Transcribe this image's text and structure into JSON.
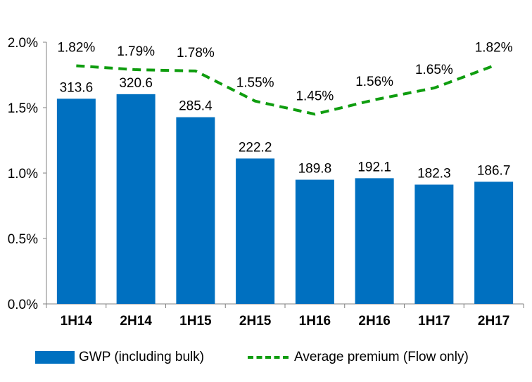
{
  "chart_data": {
    "type": "bar",
    "categories": [
      "1H14",
      "2H14",
      "1H15",
      "2H15",
      "1H16",
      "2H16",
      "1H17",
      "2H17"
    ],
    "series": [
      {
        "name": "GWP (including bulk)",
        "type": "bar",
        "values": [
          313.6,
          320.6,
          285.4,
          222.2,
          189.8,
          192.1,
          182.3,
          186.7
        ],
        "labels": [
          "313.6",
          "320.6",
          "285.4",
          "222.2",
          "189.8",
          "192.1",
          "182.3",
          "186.7"
        ],
        "color": "#0070C0"
      },
      {
        "name": "Average premium (Flow only)",
        "type": "line",
        "style": "dashed",
        "values": [
          1.82,
          1.79,
          1.78,
          1.55,
          1.45,
          1.56,
          1.65,
          1.82
        ],
        "labels": [
          "1.82%",
          "1.79%",
          "1.78%",
          "1.55%",
          "1.45%",
          "1.56%",
          "1.65%",
          "1.82%"
        ],
        "color": "#0F9D0F"
      }
    ],
    "y_axis": {
      "range": [
        0,
        2.0
      ],
      "ticks": [
        0,
        0.5,
        1.0,
        1.5,
        2.0
      ],
      "tick_labels": [
        "0.0%",
        "0.5%",
        "1.0%",
        "1.5%",
        "2.0%"
      ]
    },
    "bar_axis_range": [
      0,
      400
    ],
    "grid": false,
    "legend": {
      "position": "bottom",
      "items": [
        "GWP (including bulk)",
        "Average premium (Flow only)"
      ]
    }
  }
}
